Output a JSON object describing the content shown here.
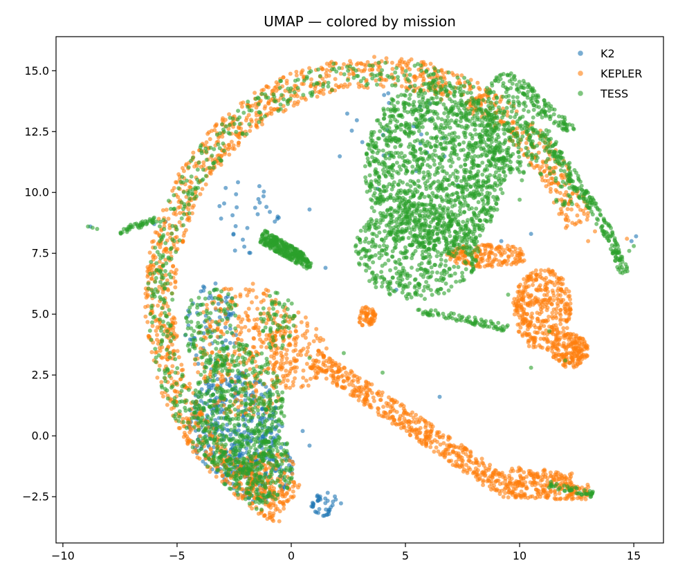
{
  "chart_data": {
    "type": "scatter",
    "title": "UMAP — colored by mission",
    "xlabel": "",
    "ylabel": "",
    "xlim": [
      -10.3,
      16.3
    ],
    "ylim": [
      -4.4,
      16.4
    ],
    "x_ticks": [
      -10,
      -5,
      0,
      5,
      10,
      15
    ],
    "x_tick_labels": [
      "−10",
      "−5",
      "0",
      "5",
      "10",
      "15"
    ],
    "y_ticks": [
      -2.5,
      0.0,
      2.5,
      5.0,
      7.5,
      10.0,
      12.5,
      15.0
    ],
    "y_tick_labels": [
      "−2.5",
      "0.0",
      "2.5",
      "5.0",
      "7.5",
      "10.0",
      "12.5",
      "15.0"
    ],
    "grid": false,
    "legend_position": "top-right",
    "series": [
      {
        "name": "K2",
        "color": "#1f77b4",
        "regions": [
          {
            "cx": -2.5,
            "cy": 0.5,
            "rx": 2.0,
            "ry": 2.2,
            "n": 320
          },
          {
            "cx": -1.5,
            "cy": -1.2,
            "rx": 1.6,
            "ry": 1.5,
            "n": 160
          },
          {
            "cx": -3.5,
            "cy": 4.5,
            "rx": 1.2,
            "ry": 1.8,
            "n": 70
          },
          {
            "cx": 1.5,
            "cy": -2.8,
            "rx": 0.7,
            "ry": 0.5,
            "n": 40
          },
          {
            "cx": -2.0,
            "cy": 9.0,
            "rx": 1.5,
            "ry": 1.5,
            "n": 30
          },
          {
            "cx": 4.5,
            "cy": 12.0,
            "rx": 2.5,
            "ry": 2.5,
            "n": 25
          }
        ],
        "points": [
          [
            15.1,
            8.2
          ],
          [
            14.9,
            8.0
          ],
          [
            -5.5,
            8.8
          ],
          [
            -6.0,
            8.7
          ],
          [
            12.2,
            3.0
          ],
          [
            10.5,
            8.3
          ],
          [
            7.3,
            10.3
          ],
          [
            4.6,
            6.0
          ],
          [
            9.2,
            8.0
          ],
          [
            1.5,
            6.9
          ],
          [
            -8.8,
            8.6
          ],
          [
            0.8,
            9.3
          ],
          [
            0.8,
            -0.4
          ],
          [
            6.5,
            1.6
          ],
          [
            -0.4,
            0.4
          ],
          [
            0.5,
            0.2
          ]
        ]
      },
      {
        "name": "KEPLER",
        "color": "#ff7f0e",
        "arcs": [
          {
            "cx": 3.7,
            "cy": 5.5,
            "r0": 8.8,
            "r1": 10.1,
            "a0": 20,
            "a1": 245,
            "n": 1300
          }
        ],
        "regions": [
          {
            "cx": 11.0,
            "cy": 5.2,
            "rx": 1.3,
            "ry": 1.7,
            "n": 380
          },
          {
            "cx": 8.6,
            "cy": 7.4,
            "rx": 1.8,
            "ry": 0.5,
            "n": 180
          },
          {
            "cx": 12.2,
            "cy": 3.5,
            "rx": 0.8,
            "ry": 0.7,
            "n": 180
          },
          {
            "cx": -2.0,
            "cy": 3.5,
            "rx": 2.3,
            "ry": 2.8,
            "n": 350
          },
          {
            "cx": 0.3,
            "cy": 3.5,
            "rx": 1.3,
            "ry": 1.6,
            "n": 110
          },
          {
            "cx": 3.3,
            "cy": 4.9,
            "rx": 0.4,
            "ry": 0.4,
            "n": 60
          },
          {
            "cx": -1.0,
            "cy": -1.8,
            "rx": 1.4,
            "ry": 1.2,
            "n": 150
          }
        ],
        "strips": [
          {
            "x0": 1.0,
            "y0": 3.2,
            "x1": 9.5,
            "y1": -2.2,
            "width": 0.9,
            "n": 500
          },
          {
            "x0": 9.5,
            "y0": -2.2,
            "x1": 13.0,
            "y1": -2.3,
            "width": 0.7,
            "n": 180
          },
          {
            "x0": 9.5,
            "y0": -1.5,
            "x1": 12.3,
            "y1": -1.7,
            "width": 0.5,
            "n": 80
          }
        ],
        "points": [
          [
            12.8,
            9.8
          ],
          [
            12.5,
            9.5
          ],
          [
            11.0,
            10.5
          ],
          [
            13.3,
            8.4
          ],
          [
            13.0,
            8.0
          ],
          [
            14.7,
            8.1
          ]
        ]
      },
      {
        "name": "TESS",
        "color": "#2ca02c",
        "regions": [
          {
            "cx": 6.3,
            "cy": 11.0,
            "rx": 3.1,
            "ry": 3.6,
            "n": 1400
          },
          {
            "cx": 5.5,
            "cy": 7.6,
            "rx": 2.7,
            "ry": 2.0,
            "n": 500
          },
          {
            "cx": 9.6,
            "cy": 12.8,
            "rx": 1.4,
            "ry": 2.2,
            "n": 240
          },
          {
            "cx": -2.3,
            "cy": 1.0,
            "rx": 2.0,
            "ry": 2.8,
            "n": 500
          },
          {
            "cx": -1.3,
            "cy": -1.2,
            "rx": 1.4,
            "ry": 1.6,
            "n": 200
          },
          {
            "cx": -3.5,
            "cy": 4.5,
            "rx": 1.2,
            "ry": 1.8,
            "n": 120
          },
          {
            "cx": -0.6,
            "cy": 4.7,
            "rx": 0.8,
            "ry": 1.2,
            "n": 60
          }
        ],
        "arcs": [
          {
            "cx": 3.7,
            "cy": 5.5,
            "r0": 8.9,
            "r1": 10.0,
            "a0": 25,
            "a1": 240,
            "n": 550
          }
        ],
        "strips": [
          {
            "x0": -1.3,
            "y0": 8.2,
            "x1": 0.4,
            "y1": 7.3,
            "width": 0.55,
            "n": 260
          },
          {
            "x0": 0.3,
            "y0": 7.5,
            "x1": 0.8,
            "y1": 6.9,
            "width": 0.35,
            "n": 60
          },
          {
            "x0": 11.0,
            "y0": 12.5,
            "x1": 13.8,
            "y1": 8.5,
            "width": 0.5,
            "n": 150
          },
          {
            "x0": 13.8,
            "y0": 8.5,
            "x1": 14.6,
            "y1": 6.7,
            "width": 0.4,
            "n": 70
          },
          {
            "x0": 10.0,
            "y0": 14.4,
            "x1": 12.3,
            "y1": 12.5,
            "width": 0.5,
            "n": 90
          },
          {
            "x0": -7.5,
            "y0": 8.4,
            "x1": -5.9,
            "y1": 8.9,
            "width": 0.25,
            "n": 45
          },
          {
            "x0": 5.5,
            "y0": 5.2,
            "x1": 9.6,
            "y1": 4.4,
            "width": 0.3,
            "n": 80
          },
          {
            "x0": 11.3,
            "y0": -2.0,
            "x1": 13.2,
            "y1": -2.4,
            "width": 0.25,
            "n": 45
          }
        ],
        "points": [
          [
            -8.9,
            8.6
          ],
          [
            -8.5,
            8.5
          ],
          [
            -8.7,
            8.55
          ],
          [
            15.0,
            7.8
          ],
          [
            14.8,
            7.6
          ],
          [
            9.5,
            5.8
          ],
          [
            12.0,
            3.1
          ],
          [
            11.3,
            4.3
          ],
          [
            10.5,
            2.8
          ],
          [
            8.2,
            9.6
          ],
          [
            5.6,
            6.1
          ],
          [
            6.9,
            7.5
          ],
          [
            10.1,
            10.5
          ],
          [
            10.0,
            9.7
          ],
          [
            2.3,
            3.4
          ],
          [
            4.0,
            2.6
          ],
          [
            -0.4,
            0.5
          ],
          [
            0.8,
            3.2
          ]
        ]
      }
    ]
  }
}
